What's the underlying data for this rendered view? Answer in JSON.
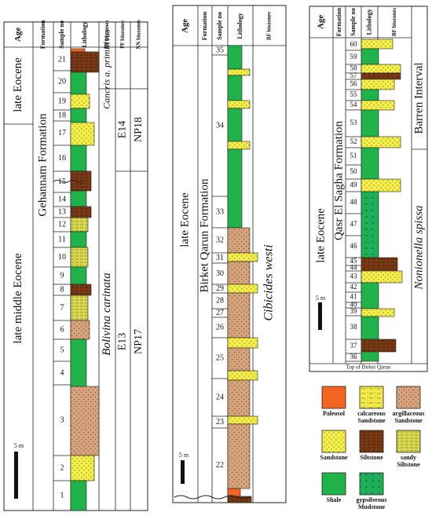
{
  "headers": {
    "age": "Age",
    "formation": "Formation",
    "sample_no": "Sample no",
    "lithology": "Lithology",
    "bf": "BF biozones",
    "pf": "PF biozones",
    "nn": "NN biozones"
  },
  "colors": {
    "paleosol": "#f26522",
    "calcareous_sandstone": "#f2e84a",
    "argillaceous_sandstone": "#d6a27c",
    "sandstone": "#f4ee4c",
    "siltstone": "#7b3a16",
    "sandy_siltstone": "#d8d84a",
    "shale": "#22b24c",
    "gypsiferous_mudstone": "#1fae5a"
  },
  "col1": {
    "ages": [
      "late Eocene",
      "late middle Eocene"
    ],
    "formation": "Gehannam Formation",
    "bf": [
      "Cancris a. primitivus",
      "Bolivina carinata"
    ],
    "pf": [
      "E14",
      "E13"
    ],
    "nn": [
      "NP18",
      "NP17"
    ],
    "samples": [
      "21",
      "20",
      "19",
      "18",
      "17",
      "16",
      "15",
      "14",
      "13",
      "12",
      "11",
      "10",
      "9",
      "8",
      "7",
      "6",
      "5",
      "4",
      "3",
      "2",
      "1"
    ],
    "scale": "5 m"
  },
  "col2": {
    "age": "late Eocene",
    "formation": "Birket Qarun Formation",
    "bf": "Cibicides westi",
    "samples": [
      "35",
      "34",
      "33",
      "32",
      "31",
      "30",
      "29",
      "28",
      "27",
      "26",
      "25",
      "24",
      "23",
      "22"
    ],
    "scale": "5 m"
  },
  "col3": {
    "age": "late Eocene",
    "formation": "Qasr El Sagha Formation",
    "bf": [
      "Barren Interval",
      "Nonionella spissa"
    ],
    "samples": [
      "60",
      "59",
      "58",
      "57",
      "56",
      "55",
      "54",
      "53",
      "52",
      "51",
      "50",
      "49",
      "48",
      "47",
      "46",
      "45",
      "44",
      "43",
      "42",
      "41",
      "40",
      "39",
      "38",
      "37",
      "36"
    ],
    "footer": "Top of Birket Qarun",
    "scale": "5 m"
  },
  "legend": {
    "paleosol": "Paleosol",
    "calcareous_sandstone": [
      "calcareous",
      "Sandstone"
    ],
    "argillaceous_sandstone": [
      "argillaceous",
      "Sandstone"
    ],
    "sandstone": "Sandstone",
    "siltstone": "Siltstone",
    "sandy_siltstone": [
      "sandy",
      "Siltstone"
    ],
    "shale": "Shale",
    "gypsiferous_mudstone": [
      "gypsiferous",
      "Mudstone"
    ]
  }
}
